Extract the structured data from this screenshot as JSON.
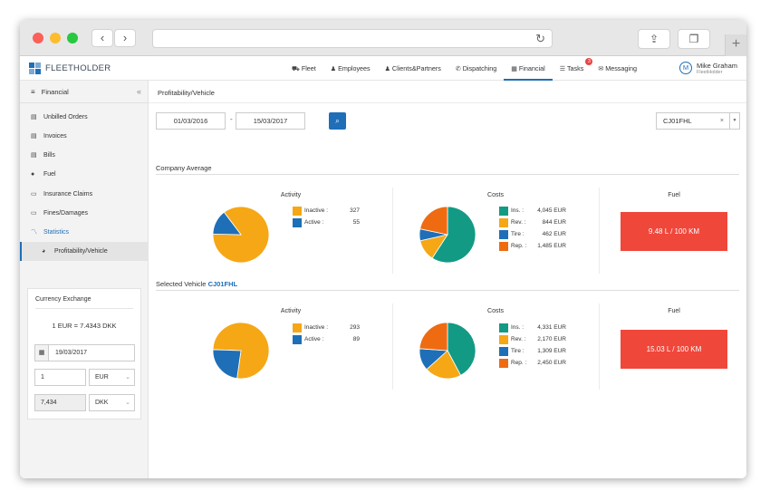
{
  "app": {
    "brand": "FLEETHOLDER",
    "nav": [
      {
        "icon": "truck-icon",
        "glyph": "⛟",
        "label": "Fleet"
      },
      {
        "icon": "user-icon",
        "glyph": "♟",
        "label": "Employees"
      },
      {
        "icon": "clients-icon",
        "glyph": "♟",
        "label": "Clients&Partners"
      },
      {
        "icon": "dispatch-icon",
        "glyph": "✆",
        "label": "Dispatching"
      },
      {
        "icon": "chart-icon",
        "glyph": "▦",
        "label": "Financial",
        "active": true
      },
      {
        "icon": "tasks-icon",
        "glyph": "☰",
        "label": "Tasks",
        "badge": "3"
      },
      {
        "icon": "messaging-icon",
        "glyph": "✉",
        "label": "Messaging"
      }
    ],
    "user": {
      "initial": "M",
      "name": "Mike Graham",
      "company": "FleetHolder"
    }
  },
  "sidebar": {
    "title": "Financial",
    "items": [
      {
        "label": "Unbilled Orders",
        "icon": "document-icon",
        "glyph": "▤"
      },
      {
        "label": "Invoices",
        "icon": "document-icon",
        "glyph": "▤"
      },
      {
        "label": "Bills",
        "icon": "bill-icon",
        "glyph": "▤"
      },
      {
        "label": "Fuel",
        "icon": "fuel-icon",
        "glyph": "●"
      },
      {
        "label": "Insurance Claims",
        "icon": "folder-icon",
        "glyph": "▭"
      },
      {
        "label": "Fines/Damages",
        "icon": "folder-icon",
        "glyph": "▭"
      },
      {
        "label": "Statistics",
        "icon": "line-chart-icon",
        "glyph": "〽"
      },
      {
        "label": "Profitability/Vehicle",
        "icon": "pie-chart-icon",
        "glyph": "◕"
      }
    ],
    "currency": {
      "title": "Currency Exchange",
      "rate_text": "1  EUR  =  7.4343  DKK",
      "date": "19/03/2017",
      "amount": "1",
      "from": "EUR",
      "result": "7,434",
      "to": "DKK"
    }
  },
  "main": {
    "page_title": "Profitability/Vehicle",
    "date_from": "01/03/2016",
    "date_sep": "-",
    "date_to": "15/03/2017",
    "vehicle": "CJ01FHL",
    "vehicle_clear": "×",
    "company_title": "Company Average",
    "selected_title": "Selected Vehicle",
    "activity_title": "Activity",
    "costs_title": "Costs",
    "fuel_title": "Fuel",
    "colors": {
      "inactive": "#f6a715",
      "active": "#1e6fb7",
      "ins": "#129a84",
      "rev": "#f6a715",
      "tire": "#1e6fb7",
      "rep": "#ee6b12",
      "fuel": "#f0473b"
    }
  },
  "chart_data": [
    {
      "type": "pie",
      "title": "Activity",
      "section": "Company Average",
      "labels": [
        "Inactive :",
        "Active :"
      ],
      "values": [
        327,
        55
      ],
      "display_values": [
        "327",
        "55"
      ]
    },
    {
      "type": "pie",
      "title": "Costs",
      "section": "Company Average",
      "labels": [
        "Ins. :",
        "Rev. :",
        "Tire :",
        "Rep. :"
      ],
      "values": [
        4045,
        844,
        462,
        1485
      ],
      "display_values": [
        "4,045 EUR",
        "844 EUR",
        "462 EUR",
        "1,485 EUR"
      ]
    },
    {
      "type": "table",
      "title": "Fuel",
      "section": "Company Average",
      "value_text": "9.48 L / 100 KM"
    },
    {
      "type": "pie",
      "title": "Activity",
      "section": "Selected Vehicle",
      "labels": [
        "Inactive :",
        "Active :"
      ],
      "values": [
        293,
        89
      ],
      "display_values": [
        "293",
        "89"
      ]
    },
    {
      "type": "pie",
      "title": "Costs",
      "section": "Selected Vehicle",
      "labels": [
        "Ins. :",
        "Rev. :",
        "Tire :",
        "Rep. :"
      ],
      "values": [
        4331,
        2170,
        1309,
        2450
      ],
      "display_values": [
        "4,331 EUR",
        "2,170 EUR",
        "1,309 EUR",
        "2,450 EUR"
      ]
    },
    {
      "type": "table",
      "title": "Fuel",
      "section": "Selected Vehicle",
      "value_text": "15.03 L / 100 KM"
    }
  ]
}
